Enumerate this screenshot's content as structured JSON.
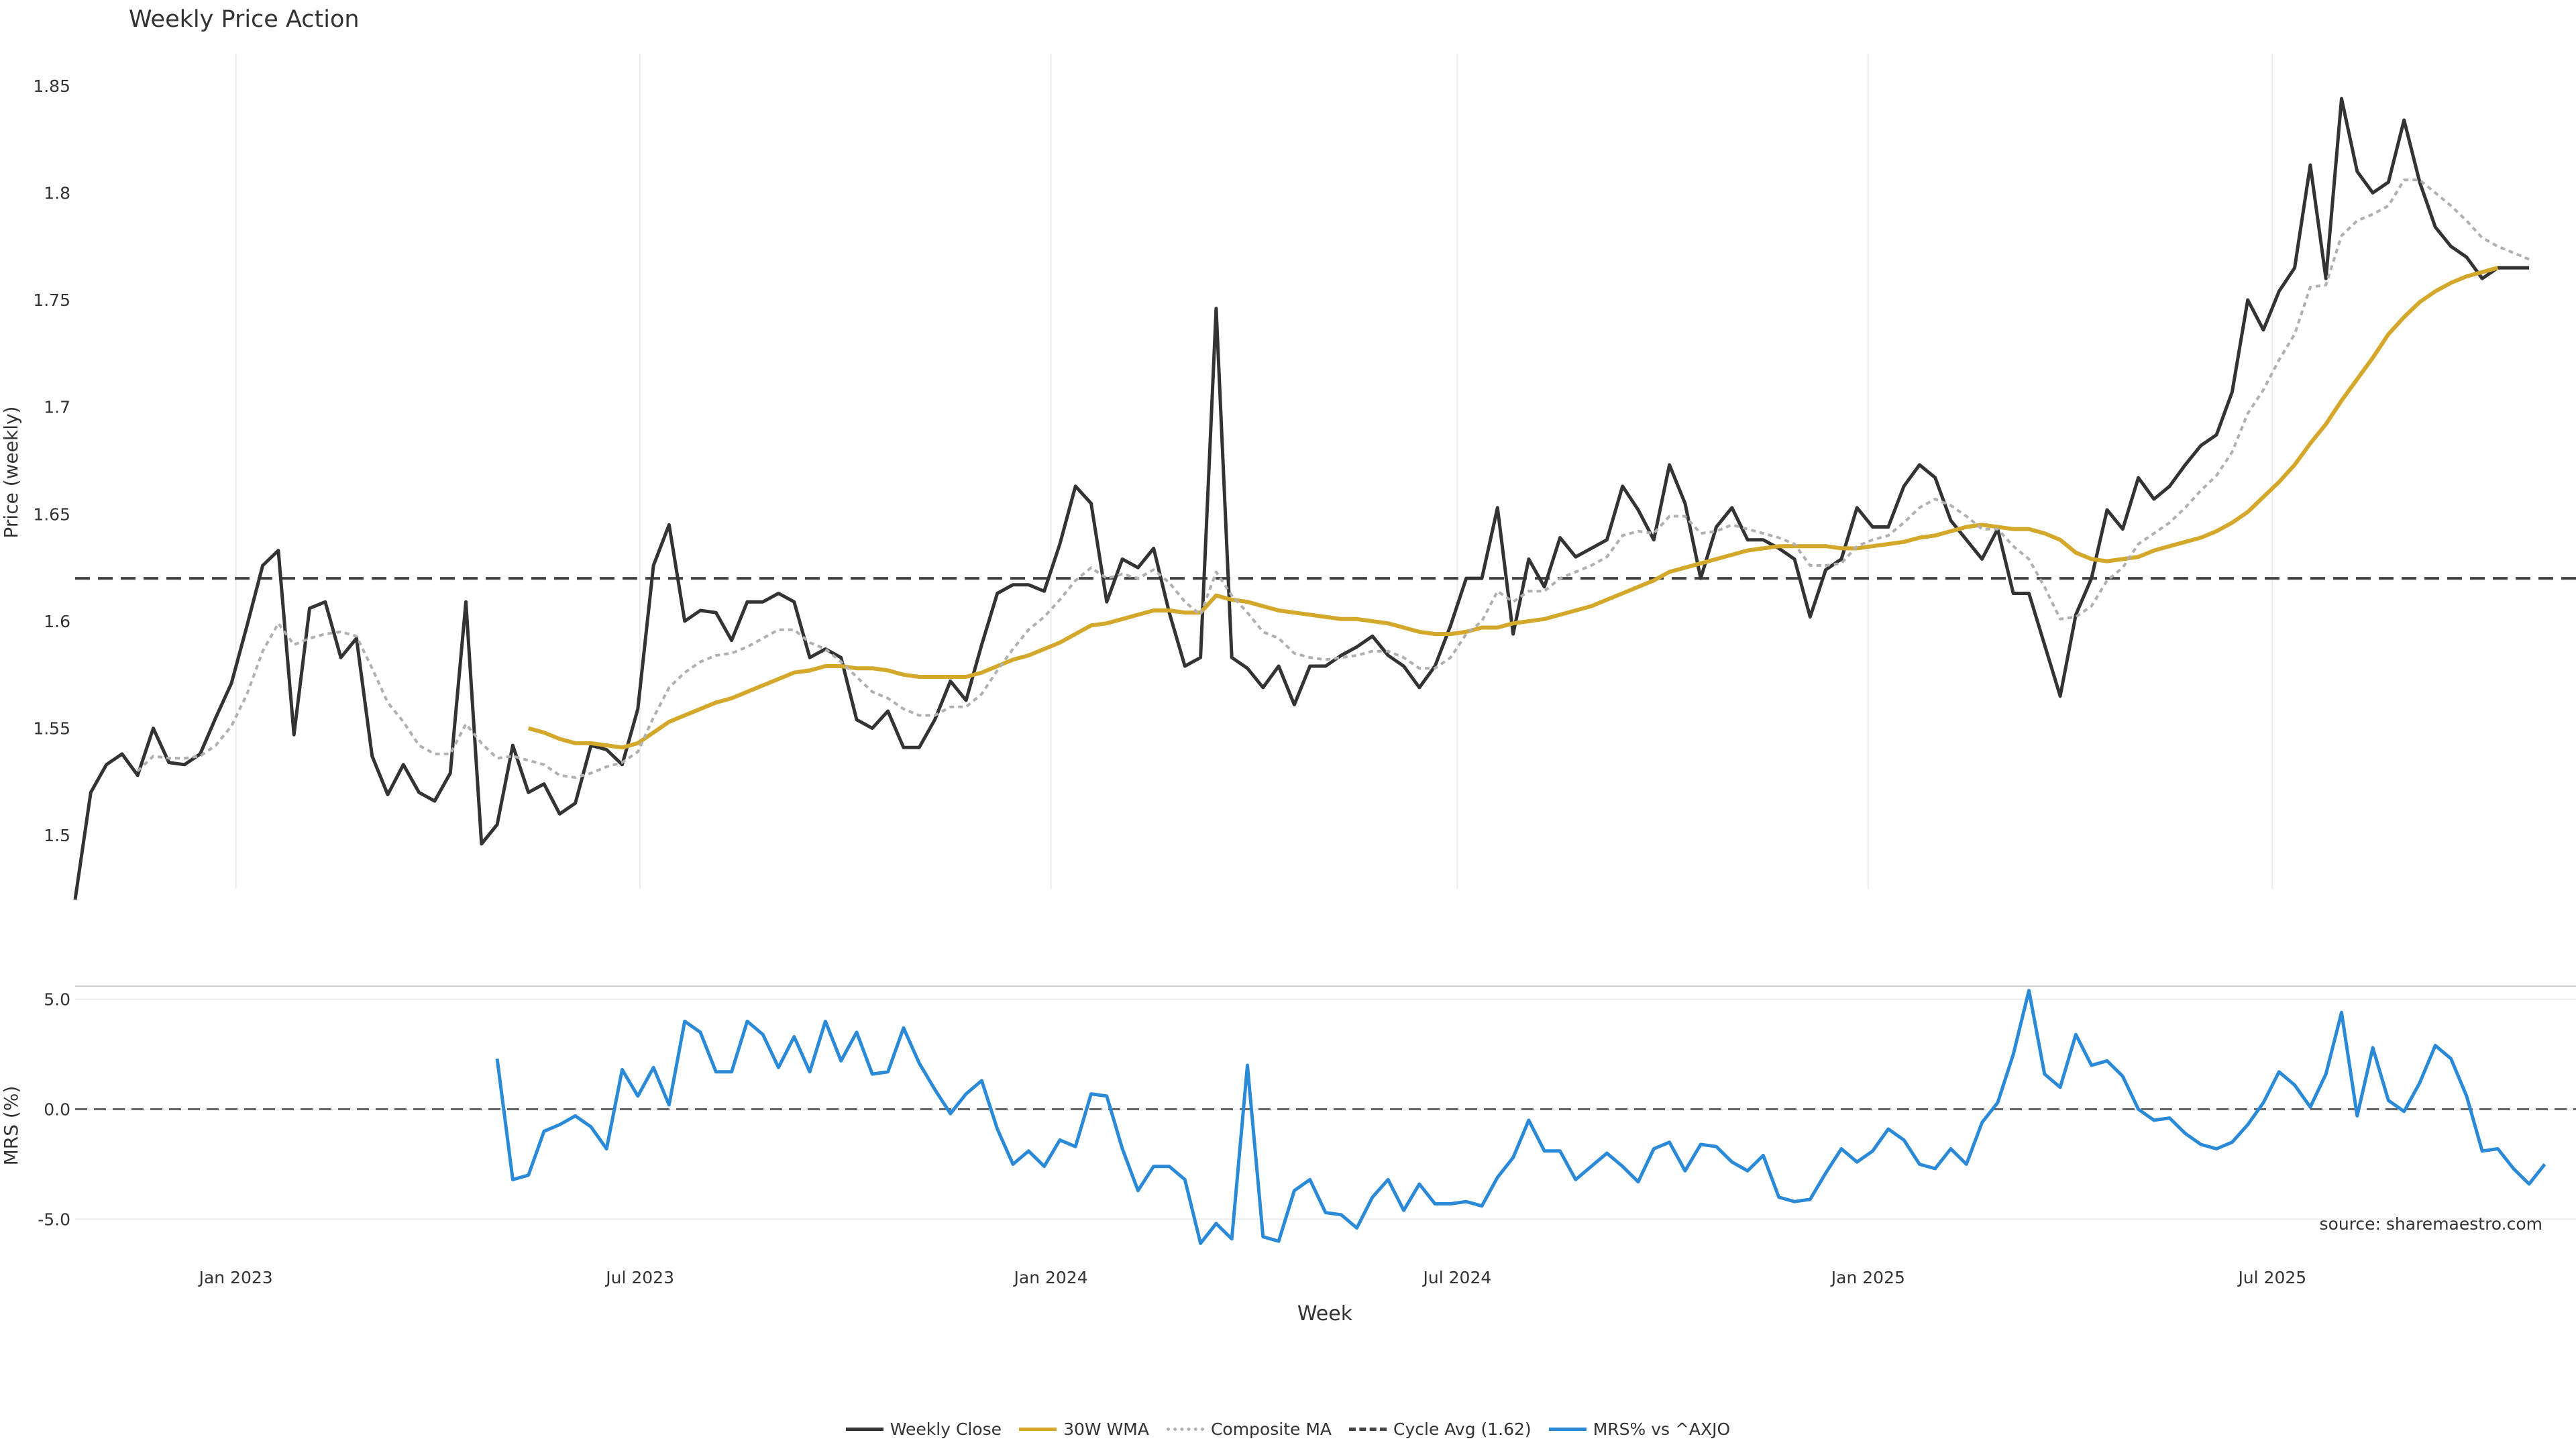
{
  "chart_data": [
    {
      "type": "line",
      "title": "Weekly Price Action",
      "ylabel": "Price (weekly)",
      "xlabel": "",
      "ylim": [
        1.475,
        1.865
      ],
      "yticks": [
        "1.5",
        "1.55",
        "1.6",
        "1.65",
        "1.7",
        "1.75",
        "1.8",
        "1.85"
      ],
      "x": {
        "start": "2022-10-21",
        "step_days": 7,
        "count": 160
      },
      "xticks": [
        "Jan 2023",
        "Jul 2023",
        "Jan 2024",
        "Jul 2024",
        "Jan 2025",
        "Jul 2025"
      ],
      "grid": "x",
      "legend": "bottom-center",
      "hline": {
        "name": "Cycle Avg (1.62)",
        "value": 1.62,
        "color": "#444444",
        "style": "dashed"
      },
      "series": [
        {
          "name": "Weekly Close",
          "color": "#333333",
          "style": "solid",
          "values": [
            1.47,
            1.52,
            1.533,
            1.538,
            1.528,
            1.55,
            1.534,
            1.533,
            1.538,
            1.555,
            1.571,
            1.598,
            1.626,
            1.633,
            1.547,
            1.606,
            1.609,
            1.583,
            1.592,
            1.537,
            1.519,
            1.533,
            1.52,
            1.516,
            1.529,
            1.609,
            1.496,
            1.505,
            1.542,
            1.52,
            1.524,
            1.51,
            1.515,
            1.542,
            1.54,
            1.533,
            1.559,
            1.626,
            1.645,
            1.6,
            1.605,
            1.604,
            1.591,
            1.609,
            1.609,
            1.613,
            1.609,
            1.583,
            1.587,
            1.583,
            1.554,
            1.55,
            1.558,
            1.541,
            1.541,
            1.554,
            1.572,
            1.563,
            1.589,
            1.613,
            1.617,
            1.617,
            1.614,
            1.636,
            1.663,
            1.655,
            1.609,
            1.629,
            1.625,
            1.634,
            1.604,
            1.579,
            1.583,
            1.746,
            1.583,
            1.578,
            1.569,
            1.579,
            1.561,
            1.579,
            1.579,
            1.584,
            1.588,
            1.593,
            1.584,
            1.579,
            1.569,
            1.579,
            1.598,
            1.62,
            1.62,
            1.653,
            1.594,
            1.629,
            1.616,
            1.639,
            1.63,
            1.634,
            1.638,
            1.663,
            1.652,
            1.638,
            1.673,
            1.655,
            1.62,
            1.644,
            1.653,
            1.638,
            1.638,
            1.634,
            1.629,
            1.602,
            1.624,
            1.629,
            1.653,
            1.644,
            1.644,
            1.663,
            1.673,
            1.667,
            1.647,
            1.638,
            1.629,
            1.643,
            1.613,
            1.613,
            1.589,
            1.565,
            1.603,
            1.62,
            1.652,
            1.643,
            1.667,
            1.657,
            1.663,
            1.673,
            1.682,
            1.687,
            1.707,
            1.75,
            1.736,
            1.754,
            1.765,
            1.813,
            1.76,
            1.844,
            1.81,
            1.8,
            1.805,
            1.834,
            1.805,
            1.784,
            1.775,
            1.77,
            1.76,
            1.765,
            1.765,
            1.765
          ]
        },
        {
          "name": "30W WMA",
          "color": "#d4a82a",
          "style": "solid",
          "start_index": 29,
          "values": [
            1.55,
            1.548,
            1.545,
            1.543,
            1.543,
            1.542,
            1.541,
            1.543,
            1.548,
            1.553,
            1.556,
            1.559,
            1.562,
            1.564,
            1.567,
            1.57,
            1.573,
            1.576,
            1.577,
            1.579,
            1.579,
            1.578,
            1.578,
            1.577,
            1.575,
            1.574,
            1.574,
            1.574,
            1.574,
            1.576,
            1.579,
            1.582,
            1.584,
            1.587,
            1.59,
            1.594,
            1.598,
            1.599,
            1.601,
            1.603,
            1.605,
            1.605,
            1.604,
            1.604,
            1.612,
            1.61,
            1.609,
            1.607,
            1.605,
            1.604,
            1.603,
            1.602,
            1.601,
            1.601,
            1.6,
            1.599,
            1.597,
            1.595,
            1.594,
            1.594,
            1.595,
            1.597,
            1.597,
            1.599,
            1.6,
            1.601,
            1.603,
            1.605,
            1.607,
            1.61,
            1.613,
            1.616,
            1.619,
            1.623,
            1.625,
            1.627,
            1.629,
            1.631,
            1.633,
            1.634,
            1.635,
            1.635,
            1.635,
            1.635,
            1.634,
            1.634,
            1.635,
            1.636,
            1.637,
            1.639,
            1.64,
            1.642,
            1.644,
            1.645,
            1.644,
            1.643,
            1.643,
            1.641,
            1.638,
            1.632,
            1.629,
            1.628,
            1.629,
            1.63,
            1.633,
            1.635,
            1.637,
            1.639,
            1.642,
            1.646,
            1.651,
            1.658,
            1.665,
            1.673,
            1.683,
            1.692,
            1.703,
            1.713,
            1.723,
            1.734,
            1.742,
            1.749,
            1.754,
            1.758,
            1.761,
            1.763,
            1.765
          ]
        },
        {
          "name": "Composite MA",
          "color": "#b0b0b0",
          "style": "dotted",
          "values": [
            null,
            null,
            null,
            null,
            1.53,
            1.537,
            1.536,
            1.536,
            1.537,
            1.542,
            1.551,
            1.566,
            1.586,
            1.599,
            1.589,
            1.592,
            1.594,
            1.595,
            1.593,
            1.578,
            1.562,
            1.553,
            1.542,
            1.538,
            1.538,
            1.552,
            1.543,
            1.536,
            1.537,
            1.535,
            1.533,
            1.528,
            1.527,
            1.529,
            1.532,
            1.534,
            1.539,
            1.555,
            1.569,
            1.576,
            1.581,
            1.584,
            1.585,
            1.588,
            1.592,
            1.596,
            1.596,
            1.59,
            1.587,
            1.581,
            1.574,
            1.567,
            1.564,
            1.559,
            1.556,
            1.556,
            1.56,
            1.56,
            1.566,
            1.577,
            1.587,
            1.596,
            1.602,
            1.61,
            1.619,
            1.625,
            1.62,
            1.622,
            1.62,
            1.624,
            1.618,
            1.609,
            1.603,
            1.623,
            1.612,
            1.604,
            1.595,
            1.592,
            1.585,
            1.583,
            1.582,
            1.583,
            1.584,
            1.586,
            1.586,
            1.583,
            1.578,
            1.578,
            1.583,
            1.594,
            1.6,
            1.614,
            1.609,
            1.614,
            1.614,
            1.62,
            1.623,
            1.626,
            1.63,
            1.64,
            1.642,
            1.641,
            1.649,
            1.649,
            1.641,
            1.642,
            1.645,
            1.643,
            1.641,
            1.639,
            1.636,
            1.626,
            1.626,
            1.627,
            1.635,
            1.638,
            1.64,
            1.646,
            1.653,
            1.657,
            1.654,
            1.649,
            1.643,
            1.643,
            1.635,
            1.629,
            1.616,
            1.601,
            1.602,
            1.607,
            1.619,
            1.625,
            1.636,
            1.641,
            1.646,
            1.653,
            1.661,
            1.668,
            1.679,
            1.697,
            1.708,
            1.722,
            1.734,
            1.756,
            1.757,
            1.78,
            1.787,
            1.79,
            1.794,
            1.806,
            1.806,
            1.8,
            1.794,
            1.787,
            1.779,
            1.775,
            1.772,
            1.769
          ]
        }
      ]
    },
    {
      "type": "line",
      "ylabel": "MRS (%)",
      "xlabel": "Week",
      "ylim": [
        -6.3,
        5.6
      ],
      "yticks": [
        "5.0",
        "0.0",
        "-5.0"
      ],
      "grid": "y",
      "hline": {
        "value": 0,
        "color": "#666666",
        "style": "dashed"
      },
      "series": [
        {
          "name": "MRS% vs ^AXJO",
          "color": "#2a8ad8",
          "style": "solid",
          "start_index": 27,
          "values": [
            2.3,
            -3.2,
            -3.0,
            -1.0,
            -0.7,
            -0.3,
            -0.8,
            -1.8,
            1.8,
            0.6,
            1.9,
            0.2,
            4.0,
            3.5,
            1.7,
            1.7,
            4.0,
            3.4,
            1.9,
            3.3,
            1.7,
            4.0,
            2.2,
            3.5,
            1.6,
            1.7,
            3.7,
            2.1,
            0.9,
            -0.2,
            0.7,
            1.3,
            -0.9,
            -2.5,
            -1.9,
            -2.6,
            -1.4,
            -1.7,
            0.7,
            0.6,
            -1.8,
            -3.7,
            -2.6,
            -2.6,
            -3.2,
            -6.1,
            -5.2,
            -5.9,
            2.0,
            -5.8,
            -6.0,
            -3.7,
            -3.2,
            -4.7,
            -4.8,
            -5.4,
            -4.0,
            -3.2,
            -4.6,
            -3.4,
            -4.3,
            -4.3,
            -4.2,
            -4.4,
            -3.1,
            -2.2,
            -0.5,
            -1.9,
            -1.9,
            -3.2,
            -2.6,
            -2.0,
            -2.6,
            -3.3,
            -1.8,
            -1.5,
            -2.8,
            -1.6,
            -1.7,
            -2.4,
            -2.8,
            -2.1,
            -4.0,
            -4.2,
            -4.1,
            -2.9,
            -1.8,
            -2.4,
            -1.9,
            -0.9,
            -1.4,
            -2.5,
            -2.7,
            -1.8,
            -2.5,
            -0.6,
            0.3,
            2.5,
            5.4,
            1.6,
            1.0,
            3.4,
            2.0,
            2.2,
            1.5,
            0.0,
            -0.5,
            -0.4,
            -1.1,
            -1.6,
            -1.8,
            -1.5,
            -0.7,
            0.3,
            1.7,
            1.1,
            0.1,
            1.6,
            4.4,
            -0.3,
            2.8,
            0.4,
            -0.1,
            1.2,
            2.9,
            2.3,
            0.6,
            -1.9,
            -1.8,
            -2.7,
            -3.4,
            -2.5
          ]
        }
      ]
    }
  ],
  "source_note": "source: sharemaestro.com"
}
